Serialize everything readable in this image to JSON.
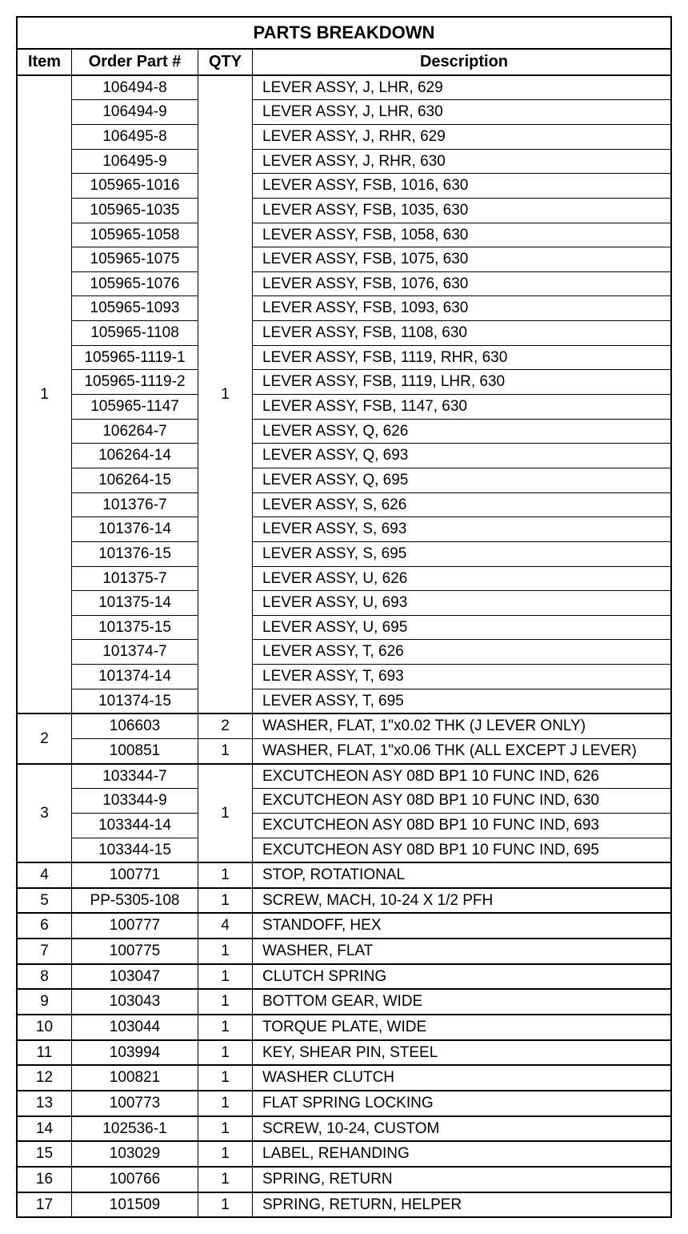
{
  "title": "PARTS BREAKDOWN",
  "headers": {
    "item": "Item",
    "part": "Order Part #",
    "qty": "QTY",
    "desc": "Description"
  },
  "rows": [
    {
      "item": "1",
      "part": "106494-8",
      "qty": "1",
      "desc": "LEVER ASSY, J, LHR, 629",
      "itemRowspan": 26,
      "qtyRowspan": 26,
      "groupStart": true
    },
    {
      "item": "",
      "part": "106494-9",
      "qty": "",
      "desc": "LEVER ASSY, J, LHR, 630"
    },
    {
      "item": "",
      "part": "106495-8",
      "qty": "",
      "desc": "LEVER ASSY, J, RHR, 629"
    },
    {
      "item": "",
      "part": "106495-9",
      "qty": "",
      "desc": "LEVER ASSY, J, RHR, 630"
    },
    {
      "item": "",
      "part": "105965-1016",
      "qty": "",
      "desc": "LEVER ASSY, FSB, 1016, 630"
    },
    {
      "item": "",
      "part": "105965-1035",
      "qty": "",
      "desc": "LEVER ASSY, FSB, 1035, 630"
    },
    {
      "item": "",
      "part": "105965-1058",
      "qty": "",
      "desc": "LEVER ASSY, FSB, 1058, 630"
    },
    {
      "item": "",
      "part": "105965-1075",
      "qty": "",
      "desc": "LEVER ASSY, FSB, 1075, 630"
    },
    {
      "item": "",
      "part": "105965-1076",
      "qty": "",
      "desc": "LEVER ASSY, FSB, 1076, 630"
    },
    {
      "item": "",
      "part": "105965-1093",
      "qty": "",
      "desc": "LEVER ASSY, FSB, 1093, 630"
    },
    {
      "item": "",
      "part": "105965-1108",
      "qty": "",
      "desc": "LEVER ASSY, FSB, 1108, 630"
    },
    {
      "item": "",
      "part": "105965-1119-1",
      "qty": "",
      "desc": "LEVER ASSY, FSB, 1119, RHR, 630"
    },
    {
      "item": "",
      "part": "105965-1119-2",
      "qty": "",
      "desc": "LEVER ASSY, FSB, 1119, LHR, 630"
    },
    {
      "item": "",
      "part": "105965-1147",
      "qty": "",
      "desc": "LEVER ASSY, FSB, 1147, 630"
    },
    {
      "item": "",
      "part": "106264-7",
      "qty": "",
      "desc": "LEVER ASSY, Q, 626"
    },
    {
      "item": "",
      "part": "106264-14",
      "qty": "",
      "desc": "LEVER ASSY, Q, 693"
    },
    {
      "item": "",
      "part": "106264-15",
      "qty": "",
      "desc": "LEVER ASSY, Q, 695"
    },
    {
      "item": "",
      "part": "101376-7",
      "qty": "",
      "desc": "LEVER ASSY, S, 626"
    },
    {
      "item": "",
      "part": "101376-14",
      "qty": "",
      "desc": "LEVER ASSY, S, 693"
    },
    {
      "item": "",
      "part": "101376-15",
      "qty": "",
      "desc": "LEVER ASSY, S, 695"
    },
    {
      "item": "",
      "part": "101375-7",
      "qty": "",
      "desc": "LEVER ASSY, U, 626"
    },
    {
      "item": "",
      "part": "101375-14",
      "qty": "",
      "desc": "LEVER ASSY, U, 693"
    },
    {
      "item": "",
      "part": "101375-15",
      "qty": "",
      "desc": "LEVER ASSY, U, 695"
    },
    {
      "item": "",
      "part": "101374-7",
      "qty": "",
      "desc": "LEVER ASSY, T, 626"
    },
    {
      "item": "",
      "part": "101374-14",
      "qty": "",
      "desc": "LEVER ASSY, T, 693"
    },
    {
      "item": "",
      "part": "101374-15",
      "qty": "",
      "desc": "LEVER ASSY, T, 695"
    },
    {
      "item": "2",
      "part": "106603",
      "qty": "2",
      "desc": "WASHER, FLAT, 1\"x0.02 THK (J LEVER ONLY)",
      "itemRowspan": 2,
      "groupStart": true
    },
    {
      "item": "",
      "part": "100851",
      "qty": "1",
      "desc": "WASHER, FLAT, 1\"x0.06 THK (ALL EXCEPT J LEVER)"
    },
    {
      "item": "3",
      "part": "103344-7",
      "qty": "1",
      "desc": "EXCUTCHEON ASY 08D BP1 10 FUNC IND, 626",
      "itemRowspan": 4,
      "qtyRowspan": 4,
      "groupStart": true
    },
    {
      "item": "",
      "part": "103344-9",
      "qty": "",
      "desc": "EXCUTCHEON ASY 08D BP1 10 FUNC IND, 630"
    },
    {
      "item": "",
      "part": "103344-14",
      "qty": "",
      "desc": "EXCUTCHEON ASY 08D BP1 10 FUNC IND, 693"
    },
    {
      "item": "",
      "part": "103344-15",
      "qty": "",
      "desc": "EXCUTCHEON ASY 08D BP1 10 FUNC IND, 695"
    },
    {
      "item": "4",
      "part": "100771",
      "qty": "1",
      "desc": "STOP, ROTATIONAL",
      "groupStart": true
    },
    {
      "item": "5",
      "part": "PP-5305-108",
      "qty": "1",
      "desc": "SCREW, MACH, 10-24 X 1/2 PFH",
      "groupStart": true
    },
    {
      "item": "6",
      "part": "100777",
      "qty": "4",
      "desc": "STANDOFF, HEX",
      "groupStart": true
    },
    {
      "item": "7",
      "part": "100775",
      "qty": "1",
      "desc": "WASHER, FLAT",
      "groupStart": true
    },
    {
      "item": "8",
      "part": "103047",
      "qty": "1",
      "desc": "CLUTCH SPRING",
      "groupStart": true
    },
    {
      "item": "9",
      "part": "103043",
      "qty": "1",
      "desc": "BOTTOM GEAR, WIDE",
      "groupStart": true
    },
    {
      "item": "10",
      "part": "103044",
      "qty": "1",
      "desc": "TORQUE PLATE, WIDE",
      "groupStart": true
    },
    {
      "item": "11",
      "part": "103994",
      "qty": "1",
      "desc": "KEY, SHEAR PIN, STEEL",
      "groupStart": true
    },
    {
      "item": "12",
      "part": "100821",
      "qty": "1",
      "desc": "WASHER CLUTCH",
      "groupStart": true
    },
    {
      "item": "13",
      "part": "100773",
      "qty": "1",
      "desc": "FLAT SPRING LOCKING",
      "groupStart": true
    },
    {
      "item": "14",
      "part": "102536-1",
      "qty": "1",
      "desc": "SCREW, 10-24, CUSTOM",
      "groupStart": true
    },
    {
      "item": "15",
      "part": "103029",
      "qty": "1",
      "desc": "LABEL, REHANDING",
      "groupStart": true
    },
    {
      "item": "16",
      "part": "100766",
      "qty": "1",
      "desc": "SPRING, RETURN",
      "groupStart": true
    },
    {
      "item": "17",
      "part": "101509",
      "qty": "1",
      "desc": "SPRING, RETURN, HELPER",
      "groupStart": true
    }
  ]
}
